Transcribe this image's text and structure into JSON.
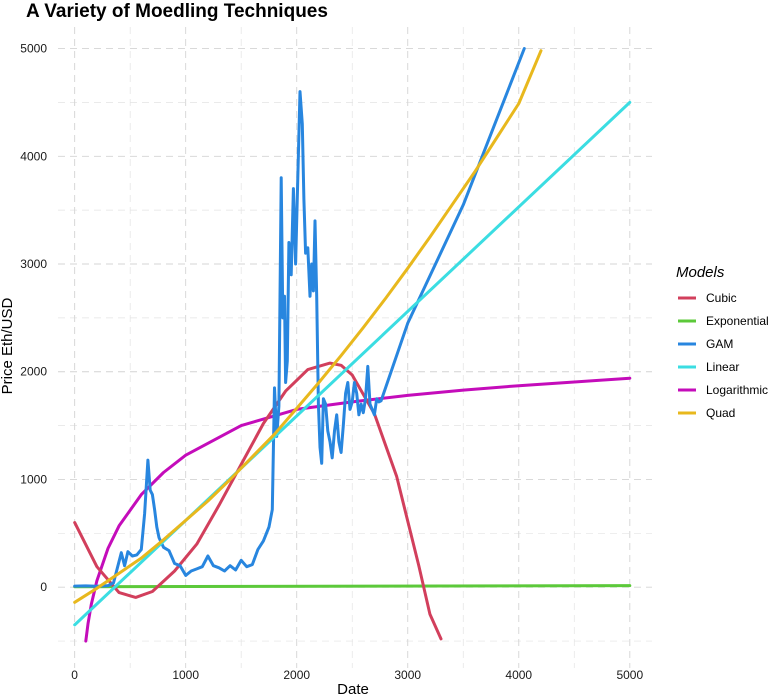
{
  "chart_data": {
    "type": "line",
    "title": "A Variety of Moedling Techniques",
    "xlabel": "Date",
    "ylabel": "Price Eth/USD",
    "xlim": [
      -150,
      5200
    ],
    "ylim": [
      -750,
      5200
    ],
    "x_ticks": [
      0,
      1000,
      2000,
      3000,
      4000,
      5000
    ],
    "y_ticks": [
      0,
      1000,
      2000,
      3000,
      4000,
      5000
    ],
    "grid": true,
    "legend": {
      "title": "Models",
      "position": "right"
    },
    "series": [
      {
        "name": "Cubic",
        "color": "#d23f5c",
        "x": [
          0,
          200,
          400,
          550,
          700,
          900,
          1100,
          1300,
          1500,
          1700,
          1900,
          2100,
          2300,
          2400,
          2500,
          2700,
          2900,
          3100,
          3200,
          3300
        ],
        "y": [
          600,
          190,
          -50,
          -95,
          -40,
          150,
          400,
          760,
          1140,
          1520,
          1820,
          2020,
          2080,
          2060,
          1970,
          1610,
          1030,
          200,
          -250,
          -480
        ]
      },
      {
        "name": "Exponential",
        "color": "#5cc93a",
        "x": [
          0,
          5000
        ],
        "y": [
          5,
          15
        ]
      },
      {
        "name": "GAM",
        "color": "#2886df",
        "x": [
          0,
          100,
          200,
          300,
          350,
          420,
          450,
          480,
          520,
          560,
          600,
          630,
          660,
          680,
          700,
          720,
          740,
          760,
          800,
          850,
          900,
          950,
          1000,
          1050,
          1100,
          1150,
          1200,
          1250,
          1300,
          1350,
          1400,
          1450,
          1500,
          1550,
          1600,
          1650,
          1700,
          1750,
          1780,
          1800,
          1820,
          1840,
          1860,
          1875,
          1890,
          1900,
          1915,
          1930,
          1950,
          1970,
          1990,
          2010,
          2030,
          2050,
          2065,
          2080,
          2100,
          2120,
          2135,
          2150,
          2165,
          2180,
          2195,
          2210,
          2225,
          2240,
          2260,
          2280,
          2300,
          2320,
          2340,
          2360,
          2380,
          2400,
          2420,
          2440,
          2460,
          2480,
          2500,
          2520,
          2540,
          2560,
          2580,
          2600,
          2620,
          2640,
          2660,
          2680,
          2700,
          2720,
          2740,
          2760,
          3000,
          3500,
          4050
        ],
        "y": [
          10,
          12,
          8,
          15,
          40,
          320,
          200,
          330,
          290,
          300,
          350,
          680,
          1180,
          900,
          860,
          720,
          560,
          460,
          370,
          340,
          220,
          200,
          110,
          150,
          170,
          190,
          290,
          200,
          180,
          150,
          200,
          160,
          250,
          190,
          210,
          350,
          430,
          560,
          720,
          1850,
          1400,
          1680,
          3800,
          2500,
          2700,
          1900,
          2100,
          3200,
          2900,
          3700,
          3000,
          3800,
          4600,
          4300,
          3600,
          3100,
          3150,
          2700,
          3000,
          2750,
          3400,
          2700,
          1700,
          1300,
          1150,
          1750,
          1700,
          1450,
          1350,
          1200,
          1450,
          1600,
          1350,
          1250,
          1500,
          1800,
          1900,
          1650,
          1720,
          1900,
          1800,
          1600,
          1700,
          1620,
          1750,
          2050,
          1700,
          1650,
          1600,
          1750,
          1720,
          1730,
          2450,
          3550,
          5000
        ]
      },
      {
        "name": "Linear",
        "color": "#3bdde2",
        "x": [
          0,
          5000
        ],
        "y": [
          -350,
          4500
        ]
      },
      {
        "name": "Logarithmic",
        "color": "#c40cba",
        "x": [
          100,
          120,
          150,
          200,
          300,
          400,
          600,
          800,
          1000,
          1500,
          2000,
          2500,
          3000,
          3500,
          4000,
          4500,
          5000
        ],
        "y": [
          -500,
          -340,
          -160,
          60,
          360,
          570,
          860,
          1065,
          1225,
          1500,
          1650,
          1720,
          1780,
          1830,
          1870,
          1905,
          1940
        ]
      },
      {
        "name": "Quad",
        "color": "#e8b81d",
        "x": [
          0,
          200,
          400,
          600,
          800,
          1000,
          1200,
          1400,
          1600,
          1800,
          2000,
          2200,
          2400,
          2600,
          2800,
          3000,
          3200,
          3400,
          3600,
          3800,
          4000,
          4200
        ],
        "y": [
          -140,
          -10,
          130,
          270,
          440,
          620,
          800,
          1000,
          1210,
          1420,
          1660,
          1900,
          2150,
          2410,
          2680,
          2960,
          3250,
          3550,
          3850,
          4170,
          4490,
          4980
        ]
      }
    ]
  }
}
